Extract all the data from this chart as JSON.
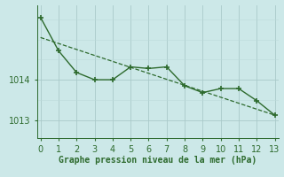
{
  "line1_x": [
    0,
    1,
    2,
    3,
    4,
    5,
    6,
    7,
    8,
    9,
    10,
    11,
    12,
    13
  ],
  "line1_y": [
    1015.55,
    1014.72,
    1014.18,
    1014.0,
    1014.0,
    1014.32,
    1014.28,
    1014.32,
    1013.85,
    1013.68,
    1013.78,
    1013.78,
    1013.48,
    1013.12
  ],
  "line2_x": [
    0,
    13
  ],
  "line2_y": [
    1015.05,
    1013.12
  ],
  "color": "#2d6a2d",
  "bg_color": "#cce8e8",
  "grid_major_color": "#aacaca",
  "grid_minor_color": "#bbdada",
  "xlabel": "Graphe pression niveau de la mer (hPa)",
  "xlim": [
    -0.2,
    13.2
  ],
  "ylim": [
    1012.55,
    1015.85
  ],
  "yticks": [
    1013,
    1014
  ],
  "xticks": [
    0,
    1,
    2,
    3,
    4,
    5,
    6,
    7,
    8,
    9,
    10,
    11,
    12,
    13
  ],
  "tick_fontsize": 7,
  "xlabel_fontsize": 7
}
